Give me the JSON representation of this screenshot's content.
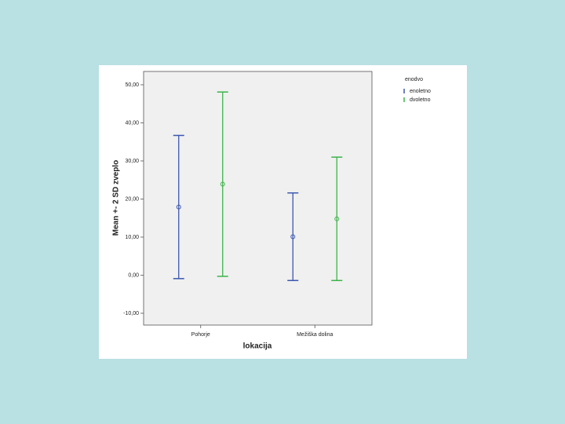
{
  "chart_data": {
    "type": "errorbar",
    "x_label": "lokacija",
    "y_label": "Mean +- 2 SD zveplo",
    "categories": [
      "Pohorje",
      "Mežiška dolina"
    ],
    "legend_title": "enodvo",
    "series": [
      {
        "name": "enoletno",
        "color": "#3b57b0",
        "values": [
          17.9,
          10.1
        ],
        "errors": [
          18.8,
          11.5
        ]
      },
      {
        "name": "dvoletno",
        "color": "#3cb34a",
        "values": [
          23.9,
          14.8
        ],
        "errors": [
          24.2,
          16.2
        ]
      }
    ],
    "ylim": [
      -13.1,
      53.5
    ],
    "yticks": [
      {
        "value": -10,
        "label": "-10,00"
      },
      {
        "value": 0,
        "label": "0,00"
      },
      {
        "value": 10,
        "label": "10,00"
      },
      {
        "value": 20,
        "label": "20,00"
      },
      {
        "value": 30,
        "label": "30,00"
      },
      {
        "value": 40,
        "label": "40,00"
      },
      {
        "value": 50,
        "label": "50,00"
      }
    ],
    "legend_position": "top-right"
  }
}
